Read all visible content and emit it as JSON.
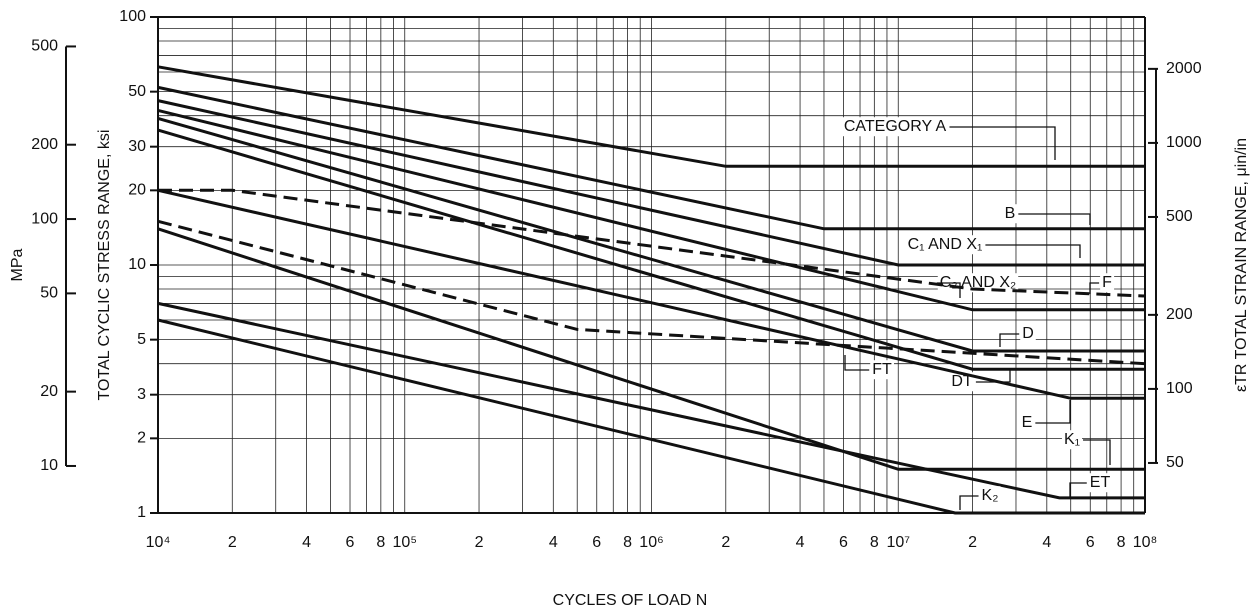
{
  "chart_data": {
    "type": "line",
    "x_label": "CYCLES OF LOAD N",
    "y_label": "TOTAL CYCLIC STRESS RANGE, ksi",
    "log_x": true,
    "log_y": true,
    "grid": true,
    "xlim": [
      10000,
      100000000
    ],
    "ylim": [
      1,
      100
    ],
    "xticks": [
      {
        "value": 10000,
        "label": "10⁴"
      },
      {
        "value": 20000,
        "label": "2"
      },
      {
        "value": 40000,
        "label": "4"
      },
      {
        "value": 60000,
        "label": "6"
      },
      {
        "value": 80000,
        "label": "8"
      },
      {
        "value": 100000,
        "label": "10⁵"
      },
      {
        "value": 200000,
        "label": "2"
      },
      {
        "value": 400000,
        "label": "4"
      },
      {
        "value": 600000,
        "label": "6"
      },
      {
        "value": 800000,
        "label": "8"
      },
      {
        "value": 1000000,
        "label": "10⁶"
      },
      {
        "value": 2000000,
        "label": "2"
      },
      {
        "value": 4000000,
        "label": "4"
      },
      {
        "value": 6000000,
        "label": "6"
      },
      {
        "value": 8000000,
        "label": "8"
      },
      {
        "value": 10000000,
        "label": "10⁷"
      },
      {
        "value": 20000000,
        "label": "2"
      },
      {
        "value": 40000000,
        "label": "4"
      },
      {
        "value": 60000000,
        "label": "6"
      },
      {
        "value": 80000000,
        "label": "8"
      },
      {
        "value": 100000000,
        "label": "10⁸"
      }
    ],
    "xminor": [
      30000,
      50000,
      70000,
      90000,
      300000,
      500000,
      700000,
      900000,
      3000000,
      5000000,
      7000000,
      9000000,
      30000000,
      50000000,
      70000000,
      90000000
    ],
    "yticks": [
      1,
      2,
      3,
      5,
      10,
      20,
      30,
      50,
      100
    ],
    "yminor": [
      4,
      6,
      7,
      8,
      9,
      40,
      60,
      70,
      80,
      90
    ],
    "mpa_axis": {
      "label": "MPa",
      "lim": [
        6.45,
        658
      ],
      "ticks": [
        10,
        20,
        50,
        100,
        200,
        500
      ]
    },
    "strain_axis": {
      "label": "εTR TOTAL STRAIN RANGE, μin/in",
      "lim": [
        31.3,
        3250
      ],
      "ticks": [
        50,
        100,
        200,
        500,
        1000,
        2000
      ]
    },
    "color": "#111111",
    "series": [
      {
        "name": "CATEGORY A",
        "x": [
          10000,
          2000000,
          100000000
        ],
        "values": [
          63,
          25,
          25
        ]
      },
      {
        "name": "B",
        "x": [
          10000,
          5000000,
          100000000
        ],
        "values": [
          52,
          14,
          14
        ]
      },
      {
        "name": "C₁ AND X₁",
        "x": [
          10000,
          10000000,
          100000000
        ],
        "values": [
          46,
          10,
          10
        ]
      },
      {
        "name": "C₂ AND X₂",
        "x": [
          10000,
          20000000,
          100000000
        ],
        "values": [
          42,
          6.6,
          6.6
        ]
      },
      {
        "name": "F",
        "dashed": true,
        "x": [
          10000,
          20000,
          20000000,
          100000000
        ],
        "values": [
          20,
          20,
          8,
          7.5
        ]
      },
      {
        "name": "D",
        "x": [
          10000,
          20000000,
          100000000
        ],
        "values": [
          39,
          4.5,
          4.5
        ]
      },
      {
        "name": "FT",
        "dashed": true,
        "x": [
          10000,
          500000,
          100000000
        ],
        "values": [
          15,
          5.5,
          4
        ]
      },
      {
        "name": "DT",
        "x": [
          10000,
          20000000,
          100000000
        ],
        "values": [
          35,
          3.8,
          3.8
        ]
      },
      {
        "name": "E",
        "x": [
          10000,
          50000000,
          100000000
        ],
        "values": [
          20,
          2.9,
          2.9
        ]
      },
      {
        "name": "K₁",
        "x": [
          10000,
          10000000,
          100000000
        ],
        "values": [
          14,
          1.5,
          1.5
        ]
      },
      {
        "name": "ET",
        "x": [
          10000,
          45000000,
          100000000
        ],
        "values": [
          7,
          1.15,
          1.15
        ]
      },
      {
        "name": "K₂",
        "x": [
          10000,
          17000000,
          100000000
        ],
        "values": [
          6,
          1,
          1
        ]
      }
    ]
  }
}
